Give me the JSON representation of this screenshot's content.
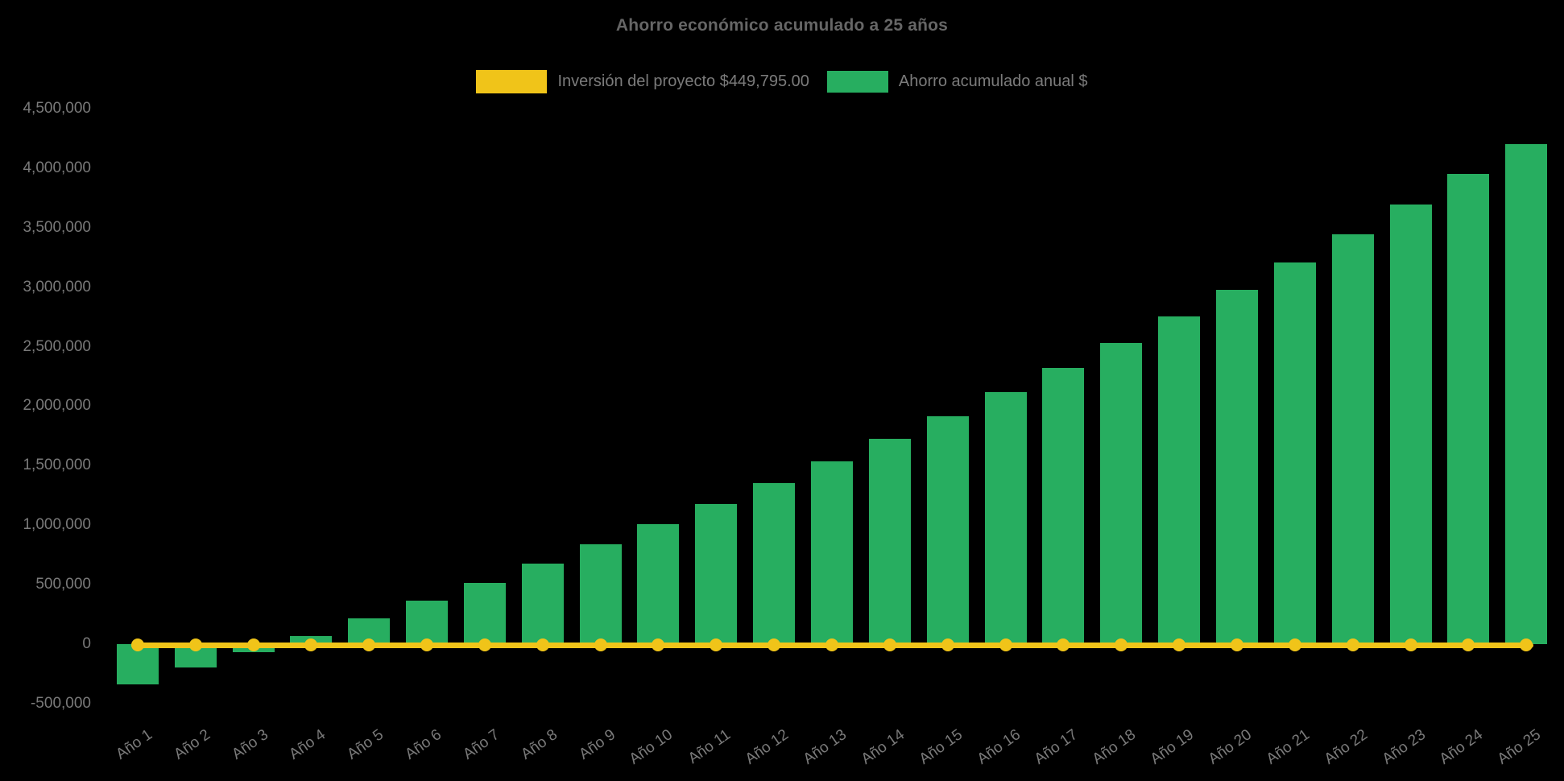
{
  "chart_data": {
    "type": "bar",
    "title": "Ahorro económico acumulado a 25 años",
    "background_color": "#000000",
    "text_color_title": "#666666",
    "text_color_ticks": "#7a7a7a",
    "legend_position": "top",
    "grid": false,
    "xlabel": "",
    "ylabel": "",
    "ylim": [
      -500000,
      4500000
    ],
    "categories": [
      "Año 1",
      "Año 2",
      "Año 3",
      "Año 4",
      "Año 5",
      "Año 6",
      "Año 7",
      "Año 8",
      "Año 9",
      "Año 10",
      "Año 11",
      "Año 12",
      "Año 13",
      "Año 14",
      "Año 15",
      "Año 16",
      "Año 17",
      "Año 18",
      "Año 19",
      "Año 20",
      "Año 21",
      "Año 22",
      "Año 23",
      "Año 24",
      "Año 25"
    ],
    "series": [
      {
        "name": "Inversión del proyecto $449,795.00",
        "type": "line",
        "color": "#F0C419",
        "marker": "circle",
        "investment_amount_label": "$449,795.00",
        "plotted_at_value": 0
      },
      {
        "name": "Ahorro acumulado anual $",
        "type": "bar",
        "color": "#27AE60",
        "values": [
          -338000,
          -199000,
          -66000,
          70000,
          214000,
          367000,
          515000,
          678000,
          836000,
          1008000,
          1178000,
          1353000,
          1536000,
          1723000,
          1917000,
          2116000,
          2320000,
          2532000,
          2752000,
          2978000,
          3209000,
          3447000,
          3695000,
          3950000,
          4203000
        ]
      }
    ],
    "y_ticks": [
      4500000,
      4000000,
      3500000,
      3000000,
      2500000,
      2000000,
      1500000,
      1000000,
      500000,
      0,
      -500000
    ],
    "y_tick_labels": [
      "4,500,000",
      "4,000,000",
      "3,500,000",
      "3,000,000",
      "2,500,000",
      "2,000,000",
      "1,500,000",
      "1,000,000",
      "500,000",
      "0",
      "-500,000"
    ]
  }
}
